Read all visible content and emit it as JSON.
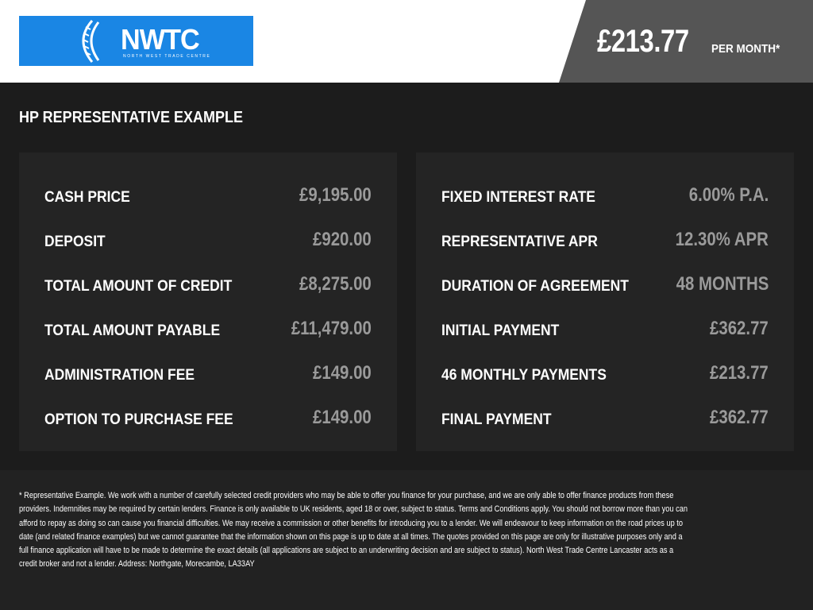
{
  "header": {
    "logo": {
      "text": "NWTC",
      "subtext": "NORTH WEST TRADE CENTRE",
      "color": "#1a86e4"
    },
    "price": "£213.77",
    "per_month": "PER MONTH*"
  },
  "title": "HP REPRESENTATIVE EXAMPLE",
  "left_rows": [
    {
      "label": "CASH PRICE",
      "value": "£9,195.00"
    },
    {
      "label": "DEPOSIT",
      "value": "£920.00"
    },
    {
      "label": "TOTAL AMOUNT OF CREDIT",
      "value": "£8,275.00"
    },
    {
      "label": "TOTAL AMOUNT PAYABLE",
      "value": "£11,479.00"
    },
    {
      "label": "ADMINISTRATION FEE",
      "value": "£149.00"
    },
    {
      "label": "OPTION TO PURCHASE FEE",
      "value": "£149.00"
    }
  ],
  "right_rows": [
    {
      "label": "FIXED INTEREST RATE",
      "value": "6.00% P.A."
    },
    {
      "label": "REPRESENTATIVE APR",
      "value": "12.30% APR"
    },
    {
      "label": "DURATION OF AGREEMENT",
      "value": "48 MONTHS"
    },
    {
      "label": "INITIAL PAYMENT",
      "value": "£362.77"
    },
    {
      "label": "46 MONTHLY PAYMENTS",
      "value": "£213.77"
    },
    {
      "label": "FINAL PAYMENT",
      "value": "£362.77"
    }
  ],
  "disclaimer_lines": [
    "* Representative Example. We work with a number of carefully selected credit providers who may be able to offer you finance for your purchase, and we are only able to offer finance products from these",
    "providers. Indemnities may be required by certain lenders. Finance is only available to UK residents, aged 18 or over, subject to status. Terms and Conditions apply. You should not borrow more than you can",
    "afford to repay as doing so can cause you financial difficulties. We may receive a commission or other benefits for introducing you to a lender. We will endeavour to keep information on the road prices up to",
    "date (and related finance examples) but we cannot guarantee that the information shown on this page is up to date at all times. The quotes provided on this page are only for illustrative purposes only and a",
    "full finance application will have to be made to determine the exact details (all applications are subject to an underwriting decision and are subject to status). North West Trade Centre Lancaster acts as a",
    "credit broker and not a lender. Address: Northgate, Morecambe, LA33AY"
  ]
}
